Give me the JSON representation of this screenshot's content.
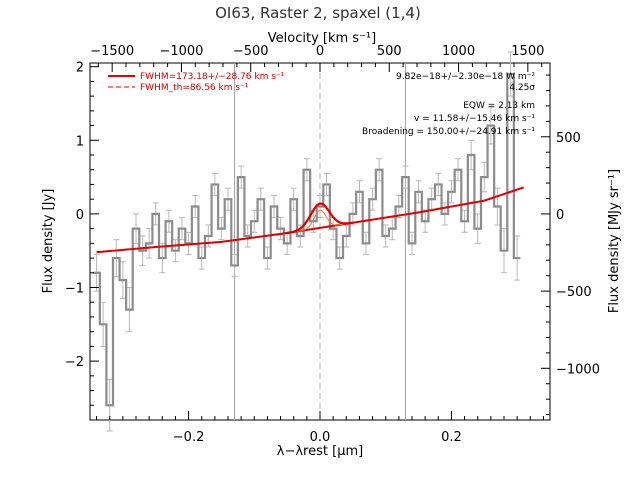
{
  "chart_data": {
    "type": "line",
    "title": "OI63, Raster 2, spaxel (1,4)",
    "xlabel": "λ−λrest [μm]",
    "ylabel": "Flux density [Jy]",
    "x2label": "Velocity [km s⁻¹]",
    "y2label": "Flux density [MJy sr⁻¹]",
    "xlim": [
      -0.35,
      0.35
    ],
    "ylim": [
      -2.8,
      2.05
    ],
    "x2lim": [
      -1660,
      1660
    ],
    "y2lim": [
      -1335,
      978
    ],
    "x_ticks": [
      -0.2,
      0.0,
      0.2
    ],
    "x_tick_labels": [
      "−0.2",
      "0.0",
      "0.2"
    ],
    "y_ticks": [
      -2,
      -1,
      0,
      1,
      2
    ],
    "y_tick_labels": [
      "−2",
      "−1",
      "0",
      "1",
      "2"
    ],
    "x2_ticks": [
      -1500,
      -1000,
      -500,
      0,
      500,
      1000,
      1500
    ],
    "x2_tick_labels": [
      "−1500",
      "−1000",
      "−500",
      "0",
      "500",
      "1000",
      "1500"
    ],
    "y2_ticks": [
      -1000,
      -500,
      0,
      500
    ],
    "y2_tick_labels": [
      "−1000",
      "−500",
      "0",
      "500"
    ],
    "legend": [
      {
        "label": "FWHM=173.18+/−28.76 km s⁻¹",
        "style": "solid",
        "color": "#e00000"
      },
      {
        "label": "FWHM_th=86.56 km s⁻¹",
        "style": "dashed",
        "color": "#e00000"
      }
    ],
    "annotations": [
      "9.82e−18+/−2.30e−18 W m⁻²",
      "4.25σ",
      "EQW = 2.13 km",
      "v = 11.58+/−15.46 km s⁻¹",
      "Broadening = 150.00+/−24.91 km s⁻¹"
    ],
    "vertical_lines": {
      "solid_gray_x": [
        -0.13,
        0.13
      ],
      "dashed_gray_x": [
        0.0
      ]
    },
    "series": [
      {
        "kind": "spectrum_steps",
        "color": "#8c8c8c",
        "x": [
          -0.34,
          -0.33,
          -0.32,
          -0.31,
          -0.3,
          -0.29,
          -0.28,
          -0.27,
          -0.26,
          -0.25,
          -0.24,
          -0.23,
          -0.22,
          -0.21,
          -0.2,
          -0.19,
          -0.18,
          -0.17,
          -0.16,
          -0.15,
          -0.14,
          -0.13,
          -0.12,
          -0.11,
          -0.1,
          -0.09,
          -0.08,
          -0.07,
          -0.06,
          -0.05,
          -0.04,
          -0.03,
          -0.02,
          -0.01,
          0.0,
          0.01,
          0.02,
          0.03,
          0.04,
          0.05,
          0.06,
          0.07,
          0.08,
          0.09,
          0.1,
          0.11,
          0.12,
          0.13,
          0.14,
          0.15,
          0.16,
          0.17,
          0.18,
          0.19,
          0.2,
          0.21,
          0.22,
          0.23,
          0.24,
          0.25,
          0.26,
          0.27,
          0.28,
          0.29,
          0.3
        ],
        "y": [
          -0.8,
          -1.5,
          -2.6,
          -0.6,
          -0.9,
          -1.3,
          -0.2,
          -0.5,
          -0.4,
          0.0,
          -0.6,
          -0.1,
          -0.5,
          -0.2,
          -0.4,
          0.1,
          -0.6,
          -0.3,
          0.4,
          -0.2,
          0.2,
          -0.7,
          0.5,
          -0.3,
          -0.1,
          0.2,
          -0.6,
          0.1,
          -0.2,
          -0.4,
          0.2,
          -0.3,
          0.6,
          -0.1,
          0.1,
          0.4,
          -0.2,
          -0.6,
          -0.3,
          0.0,
          0.3,
          -0.4,
          0.2,
          0.6,
          -0.3,
          -0.2,
          0.1,
          0.5,
          -0.4,
          0.3,
          -0.1,
          0.2,
          0.4,
          0.0,
          0.3,
          0.6,
          -0.1,
          0.8,
          -0.2,
          0.5,
          1.2,
          0.1,
          -0.5,
          1.9,
          -0.6
        ],
        "y_err": [
          0.25,
          0.3,
          0.35,
          0.25,
          0.25,
          0.3,
          0.2,
          0.2,
          0.2,
          0.15,
          0.2,
          0.15,
          0.15,
          0.15,
          0.15,
          0.15,
          0.15,
          0.15,
          0.15,
          0.15,
          0.15,
          0.15,
          0.15,
          0.15,
          0.15,
          0.15,
          0.15,
          0.15,
          0.15,
          0.15,
          0.15,
          0.15,
          0.15,
          0.15,
          0.15,
          0.15,
          0.15,
          0.15,
          0.15,
          0.15,
          0.15,
          0.15,
          0.15,
          0.15,
          0.15,
          0.15,
          0.15,
          0.15,
          0.15,
          0.15,
          0.15,
          0.15,
          0.15,
          0.15,
          0.15,
          0.15,
          0.15,
          0.2,
          0.2,
          0.2,
          0.25,
          0.25,
          0.3,
          0.3,
          0.3
        ]
      },
      {
        "kind": "continuum",
        "color": "#e00000",
        "x": [
          -0.34,
          -0.25,
          -0.15,
          -0.05,
          0.05,
          0.15,
          0.25,
          0.31
        ],
        "y": [
          -0.52,
          -0.45,
          -0.38,
          -0.26,
          -0.12,
          0.02,
          0.18,
          0.36
        ]
      },
      {
        "kind": "gaussian_fit",
        "color": "#e00000",
        "center": 0.0,
        "amplitude": 0.33,
        "sigma": 0.014
      },
      {
        "kind": "gaussian_thermal",
        "color": "#e08040",
        "center": 0.0,
        "amplitude": 0.24,
        "sigma": 0.009
      }
    ]
  }
}
